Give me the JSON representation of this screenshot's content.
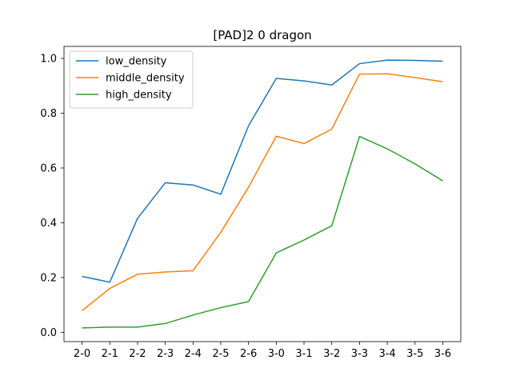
{
  "chart_data": {
    "type": "line",
    "title": "[PAD]2 0 dragon",
    "xlabel": "",
    "ylabel": "",
    "categories": [
      "2-0",
      "2-1",
      "2-2",
      "2-3",
      "2-4",
      "2-5",
      "2-6",
      "3-0",
      "3-1",
      "3-2",
      "3-3",
      "3-4",
      "3-5",
      "3-6"
    ],
    "ylim": [
      -0.034,
      1.044
    ],
    "yticks": [
      0.0,
      0.2,
      0.4,
      0.6,
      0.8,
      1.0
    ],
    "ytick_labels": [
      "0.0",
      "0.2",
      "0.4",
      "0.6",
      "0.8",
      "1.0"
    ],
    "grid": false,
    "legend_position": "upper-left",
    "series": [
      {
        "name": "low_density",
        "color": "#1f77b4",
        "values": [
          0.204,
          0.183,
          0.416,
          0.546,
          0.538,
          0.504,
          0.754,
          0.927,
          0.918,
          0.903,
          0.981,
          0.994,
          0.993,
          0.99
        ]
      },
      {
        "name": "middle_density",
        "color": "#ff7f0e",
        "values": [
          0.079,
          0.16,
          0.212,
          0.22,
          0.225,
          0.365,
          0.53,
          0.716,
          0.689,
          0.742,
          0.943,
          0.944,
          0.93,
          0.915
        ]
      },
      {
        "name": "high_density",
        "color": "#2ca02c",
        "values": [
          0.016,
          0.019,
          0.019,
          0.032,
          0.063,
          0.09,
          0.112,
          0.29,
          0.337,
          0.389,
          0.715,
          0.67,
          0.615,
          0.553
        ]
      }
    ]
  }
}
